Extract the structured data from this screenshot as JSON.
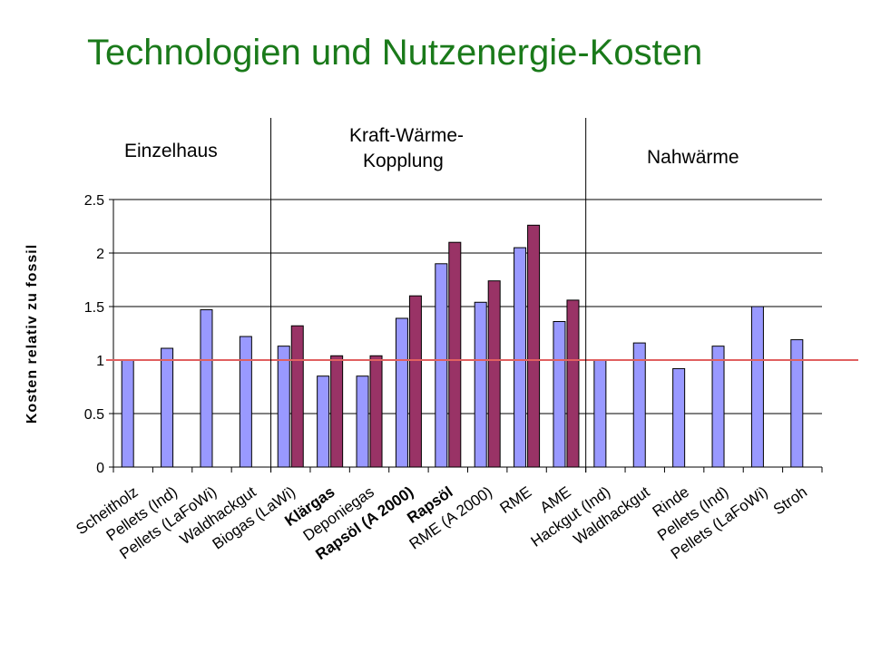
{
  "slide": {
    "title": "Technologien und Nutzenergie-Kosten"
  },
  "chart_data": {
    "type": "bar",
    "title": "",
    "xlabel": "",
    "ylabel": "Kosten relativ zu fossil",
    "ylim": [
      0,
      2.5
    ],
    "yticks": [
      "0",
      "0.5",
      "1",
      "1.5",
      "2",
      "2.5"
    ],
    "grid": true,
    "reference_line": {
      "value": 1,
      "color": "#e06060"
    },
    "sections": [
      {
        "label_lines": [
          "Einzelhaus"
        ],
        "start": 0,
        "end": 4
      },
      {
        "label_lines": [
          "Kraft-Wärme-",
          "Kopplung"
        ],
        "start": 4,
        "end": 12
      },
      {
        "label_lines": [
          "Nahwärme"
        ],
        "start": 12,
        "end": 18
      }
    ],
    "categories": [
      "Scheitholz",
      "Pellets (Ind)",
      "Pellets (LaFoWi)",
      "Waldhackgut",
      "Biogas (LaWi)",
      "Klärgas",
      "Deponiegas",
      "Rapsöl (A 2000)",
      "Rapsöl",
      "RME (A 2000)",
      "RME",
      "AME",
      "Hackgut (Ind)",
      "Waldhackgut",
      "Rinde",
      "Pellets (Ind)",
      "Pellets (LaFoWi)",
      "Stroh"
    ],
    "bold_categories": [
      "Klärgas",
      "Rapsöl (A 2000)",
      "Rapsöl"
    ],
    "series": [
      {
        "color": "#9999ff",
        "values": [
          1.0,
          1.11,
          1.47,
          1.22,
          1.13,
          0.85,
          0.85,
          1.39,
          1.9,
          1.54,
          2.05,
          1.36,
          1.0,
          1.16,
          0.92,
          1.13,
          1.5,
          1.19
        ]
      },
      {
        "color": "#993366",
        "values": [
          null,
          null,
          null,
          null,
          1.32,
          1.04,
          1.04,
          1.6,
          2.1,
          1.74,
          2.26,
          1.56,
          null,
          null,
          null,
          null,
          null,
          null
        ]
      }
    ]
  }
}
